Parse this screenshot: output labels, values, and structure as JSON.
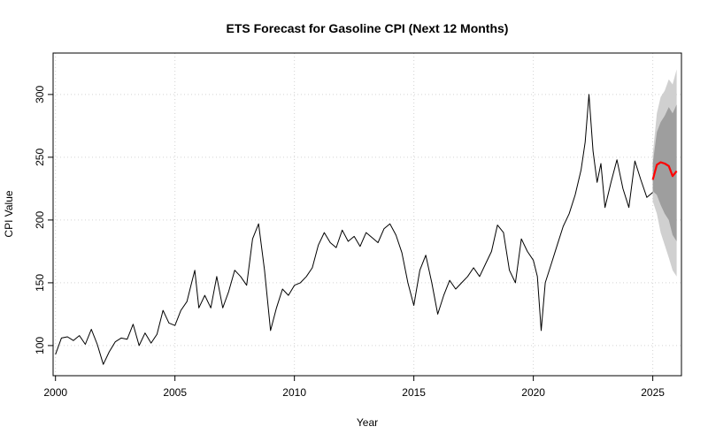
{
  "chart_data": {
    "type": "line",
    "title": "ETS Forecast for Gasoline CPI (Next 12 Months)",
    "xlabel": "Year",
    "ylabel": "CPI Value",
    "xlim": [
      1999.9,
      2026.2
    ],
    "ylim": [
      76,
      333
    ],
    "x_ticks": [
      2000,
      2005,
      2010,
      2015,
      2020,
      2025
    ],
    "x_tick_labels": [
      "2000",
      "2005",
      "2010",
      "2015",
      "2020",
      "2025"
    ],
    "y_ticks": [
      100,
      150,
      200,
      250,
      300
    ],
    "y_tick_labels": [
      "100",
      "150",
      "200",
      "250",
      "300"
    ],
    "grid": true,
    "legend": "none",
    "colors": {
      "history": "#000000",
      "forecast": "#ff0000",
      "pi80": "#9e9e9e",
      "pi95": "#d0d0d0",
      "grid": "#d3d3d3"
    },
    "series": [
      {
        "role": "history",
        "x": [
          2000.0,
          2000.25,
          2000.5,
          2000.75,
          2001.0,
          2001.25,
          2001.5,
          2001.75,
          2002.0,
          2002.25,
          2002.5,
          2002.75,
          2003.0,
          2003.25,
          2003.5,
          2003.75,
          2004.0,
          2004.25,
          2004.5,
          2004.75,
          2005.0,
          2005.25,
          2005.5,
          2005.67,
          2005.83,
          2006.0,
          2006.25,
          2006.5,
          2006.75,
          2007.0,
          2007.25,
          2007.5,
          2007.75,
          2008.0,
          2008.25,
          2008.5,
          2008.75,
          2009.0,
          2009.25,
          2009.5,
          2009.75,
          2010.0,
          2010.25,
          2010.5,
          2010.75,
          2011.0,
          2011.25,
          2011.5,
          2011.75,
          2012.0,
          2012.25,
          2012.5,
          2012.75,
          2013.0,
          2013.25,
          2013.5,
          2013.75,
          2014.0,
          2014.25,
          2014.5,
          2014.75,
          2015.0,
          2015.25,
          2015.5,
          2015.75,
          2016.0,
          2016.25,
          2016.5,
          2016.75,
          2017.0,
          2017.25,
          2017.5,
          2017.75,
          2018.0,
          2018.25,
          2018.5,
          2018.75,
          2019.0,
          2019.25,
          2019.5,
          2019.75,
          2020.0,
          2020.17,
          2020.33,
          2020.5,
          2020.75,
          2021.0,
          2021.25,
          2021.5,
          2021.75,
          2022.0,
          2022.17,
          2022.33,
          2022.5,
          2022.67,
          2022.83,
          2023.0,
          2023.25,
          2023.5,
          2023.75,
          2024.0,
          2024.25,
          2024.5,
          2024.75,
          2025.0
        ],
        "values": [
          93,
          106,
          107,
          104,
          108,
          101,
          113,
          101,
          85,
          95,
          103,
          106,
          105,
          117,
          100,
          110,
          102,
          109,
          128,
          118,
          116,
          128,
          135,
          148,
          160,
          130,
          140,
          130,
          155,
          130,
          143,
          160,
          155,
          148,
          185,
          197,
          160,
          112,
          130,
          145,
          140,
          148,
          150,
          155,
          162,
          180,
          190,
          182,
          178,
          192,
          183,
          187,
          179,
          190,
          186,
          182,
          193,
          197,
          188,
          174,
          150,
          132,
          160,
          172,
          150,
          125,
          140,
          152,
          145,
          150,
          155,
          162,
          155,
          165,
          175,
          196,
          190,
          160,
          150,
          185,
          175,
          168,
          155,
          112,
          150,
          165,
          180,
          195,
          205,
          220,
          240,
          262,
          300,
          255,
          230,
          245,
          210,
          230,
          248,
          225,
          210,
          247,
          232,
          218,
          222
        ]
      },
      {
        "role": "forecast",
        "x": [
          2025.0,
          2025.17,
          2025.33,
          2025.5,
          2025.67,
          2025.83,
          2026.0
        ],
        "values": [
          232,
          244,
          246,
          245,
          243,
          235,
          239
        ]
      },
      {
        "role": "pi80",
        "x": [
          2025.0,
          2025.17,
          2025.33,
          2025.5,
          2025.67,
          2025.83,
          2026.0
        ],
        "upper": [
          245,
          270,
          278,
          283,
          290,
          285,
          292
        ],
        "lower": [
          223,
          220,
          212,
          205,
          200,
          188,
          183
        ]
      },
      {
        "role": "pi95",
        "x": [
          2025.0,
          2025.17,
          2025.33,
          2025.5,
          2025.67,
          2025.83,
          2026.0
        ],
        "upper": [
          252,
          285,
          298,
          303,
          312,
          308,
          320
        ],
        "lower": [
          215,
          205,
          190,
          180,
          170,
          160,
          155
        ]
      }
    ]
  }
}
